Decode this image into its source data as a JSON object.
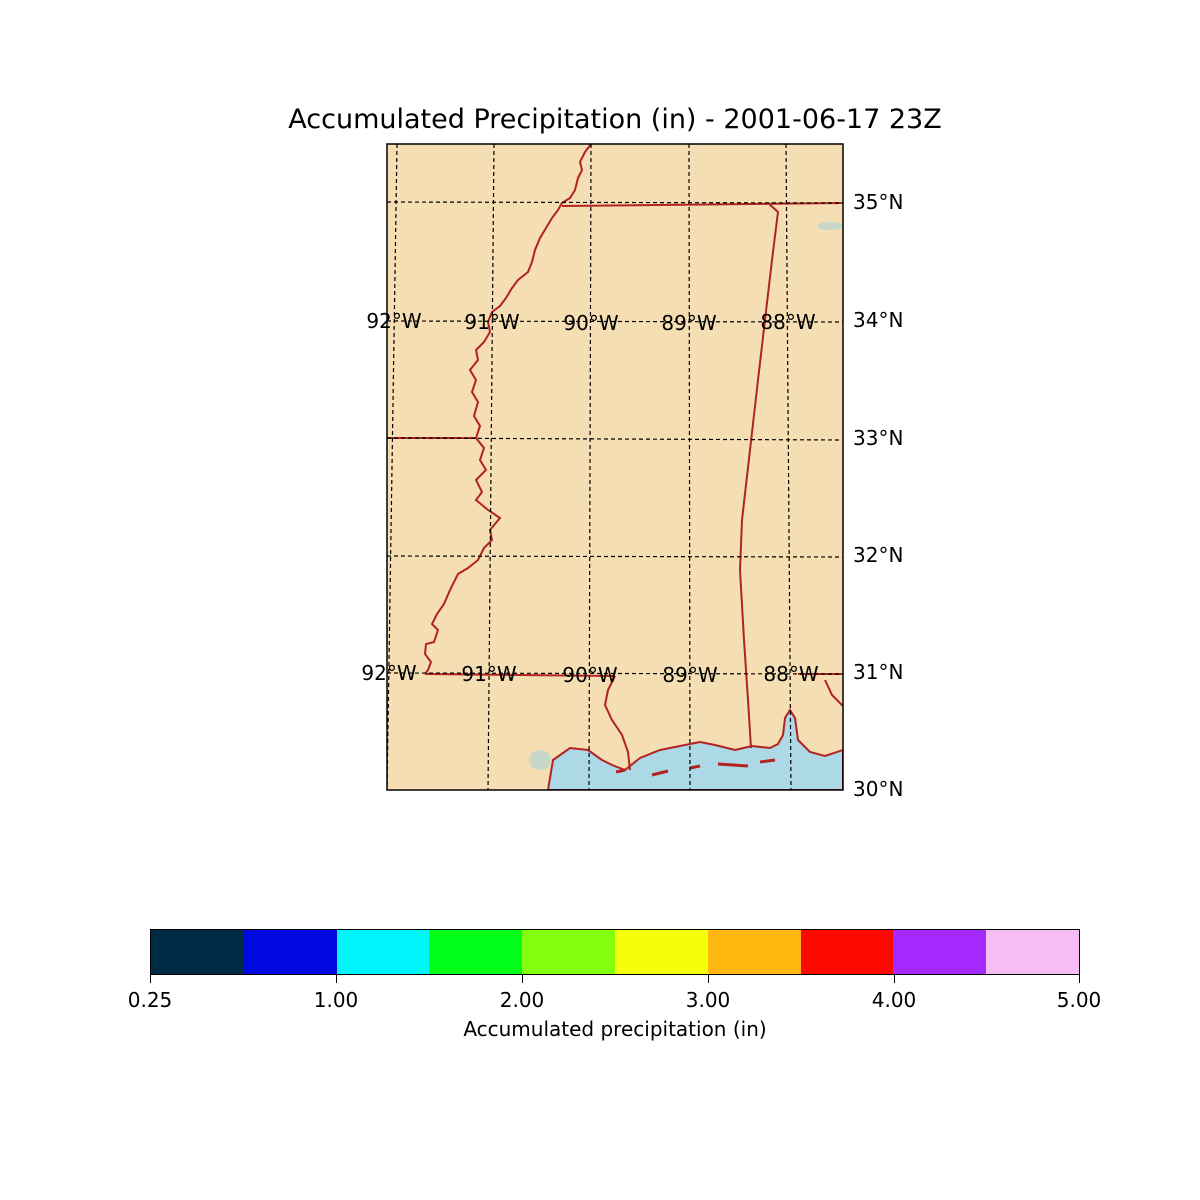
{
  "title": "Accumulated Precipitation (in) - 2001-06-17 23Z",
  "map": {
    "land_color": "#f5deb3",
    "water_color": "#add8e6",
    "lake_color": "#c8d8c8",
    "border_color": "#b22222",
    "gridline_style": "dashed",
    "extent": {
      "lon_min": -92.0,
      "lon_max": -87.55,
      "lat_min": 30.0,
      "lat_max": 35.5
    }
  },
  "lat_labels": [
    "35°N",
    "34°N",
    "33°N",
    "32°N",
    "31°N",
    "30°N"
  ],
  "lon_labels_upper": [
    "92°W",
    "91°W",
    "90°W",
    "89°W",
    "88°W"
  ],
  "lon_labels_lower": [
    "92°W",
    "91°W",
    "90°W",
    "89°W",
    "88°W"
  ],
  "colorbar": {
    "label": "Accumulated precipitation (in)",
    "colors": [
      "#002b45",
      "#0008e0",
      "#00f5fa",
      "#00ff18",
      "#82ff0c",
      "#f5ff0a",
      "#ffb80f",
      "#ff0800",
      "#a42aff",
      "#f5bcf5"
    ],
    "tick_labels": [
      "0.25",
      "1.00",
      "2.00",
      "3.00",
      "4.00",
      "5.00"
    ]
  }
}
